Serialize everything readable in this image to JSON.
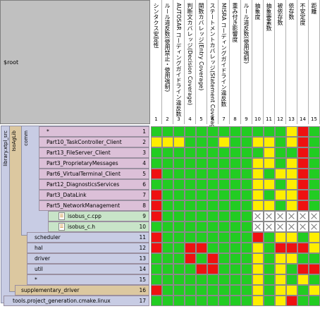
{
  "root_label": "$root",
  "columns": [
    {
      "num": "1",
      "label": "シンタクス安定性"
    },
    {
      "num": "2",
      "label": "ルール違反数(使用禁止・使用強制)"
    },
    {
      "num": "3",
      "label": "AUTOSAR コーディングガイドライン違反数"
    },
    {
      "num": "4",
      "label": "判断文カバレッジ(Decision Coverage)"
    },
    {
      "num": "5",
      "label": "関数カバレッジ(Entry Coverage)"
    },
    {
      "num": "6",
      "label": "ステートメントカバレッジ(Statement Coverage)"
    },
    {
      "num": "7",
      "label": "MISRA コーディングガイドライン違反数"
    },
    {
      "num": "8",
      "label": "重み付き影響度"
    },
    {
      "num": "9",
      "label": "ルール違反数(使用強制)"
    },
    {
      "num": "10",
      "label": "抽象度"
    },
    {
      "num": "11",
      "label": "抽象要素数"
    },
    {
      "num": "12",
      "label": "被依存数"
    },
    {
      "num": "13",
      "label": "依存数"
    },
    {
      "num": "14",
      "label": "不安定度"
    },
    {
      "num": "15",
      "label": "距離"
    }
  ],
  "bands": {
    "library": "library.xtpl_src",
    "isoaglib": "IsoAgLib",
    "comm": "comm"
  },
  "rows": [
    {
      "num": "1",
      "label": "*"
    },
    {
      "num": "2",
      "label": "Part10_TaskController_Client"
    },
    {
      "num": "3",
      "label": "Part13_FileServer_Client"
    },
    {
      "num": "4",
      "label": "Part3_ProprietaryMessages"
    },
    {
      "num": "5",
      "label": "Part6_VirtualTerminal_Client"
    },
    {
      "num": "6",
      "label": "Part12_DiagnosticsServices"
    },
    {
      "num": "7",
      "label": "Part3_DataLink"
    },
    {
      "num": "8",
      "label": "Part5_NetworkManagement"
    },
    {
      "num": "9",
      "label": "isobus_c.cpp"
    },
    {
      "num": "10",
      "label": "isobus_c.h"
    },
    {
      "num": "11",
      "label": "scheduler"
    },
    {
      "num": "12",
      "label": "hal"
    },
    {
      "num": "13",
      "label": "driver"
    },
    {
      "num": "14",
      "label": "util"
    },
    {
      "num": "15",
      "label": "*"
    },
    {
      "num": "16",
      "label": "supplementary_driver"
    },
    {
      "num": "17",
      "label": "tools.project_generation.cmake.linux"
    }
  ],
  "colors": {
    "G": "#22cc22",
    "Y": "#ffee00",
    "R": "#ee1111",
    "W": "#ffffff"
  },
  "grid": [
    "GGGGGGGGGGGGYRG",
    "YYYGGGYGGYYGYRG",
    "GGGGGGGGGGYGGRG",
    "GGGGGGGGGYYGYRG",
    "RGGGGGGGGYGYYRG",
    "GGGGGGGGGYYGYRG",
    "RGGGGGGGGYGYYRG",
    "RGGGGGGGGYYGYRG",
    "RGGGGGGGGXXXXXX",
    "GGGGGGGGGXXXXXX",
    "RGGGGGGGGRGYYGY",
    "RGGRRGGGGYGRRRY",
    "GGGRGRGGGYGYYGG",
    "GGGGRRGGGYGYGRR",
    "GGGGGGGGGYGYGYG",
    "RGGGGGGGGYGYYGY",
    "GGGGGGGGGYGYRGG"
  ]
}
